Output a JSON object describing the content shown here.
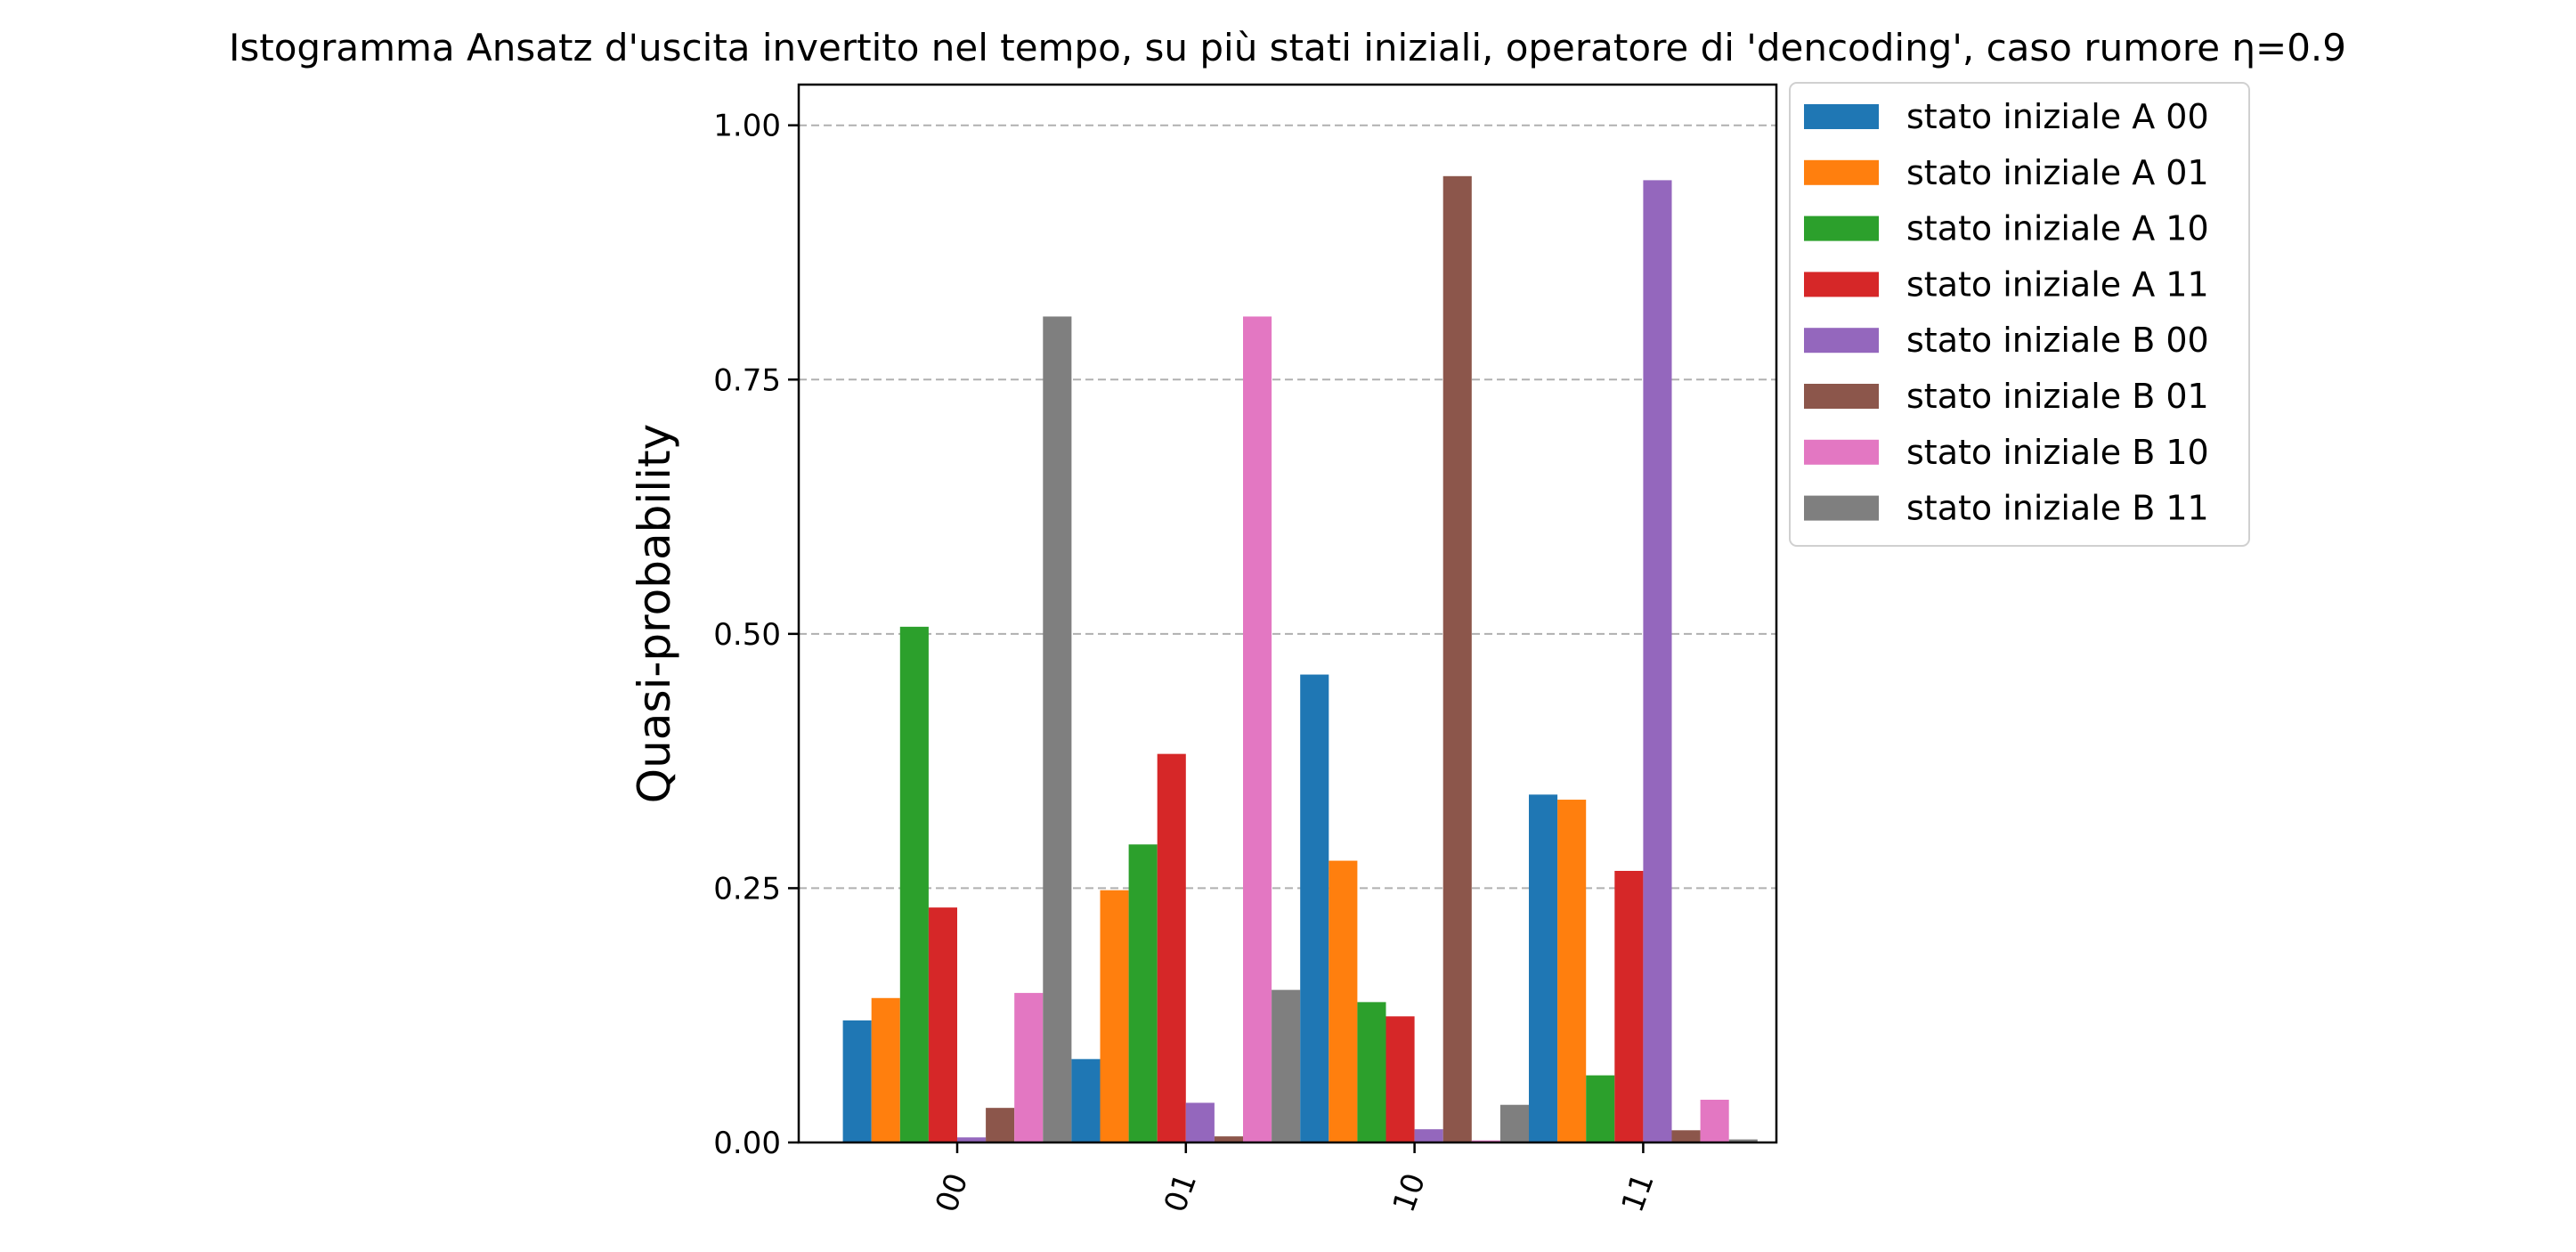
{
  "chart_data": {
    "type": "bar",
    "title": "Istogramma Ansatz d'uscita invertito nel tempo, su più stati iniziali, operatore di 'dencoding', caso rumore η=0.9",
    "xlabel": "",
    "ylabel": "Quasi-probability",
    "categories": [
      "00",
      "01",
      "10",
      "11"
    ],
    "ylim": [
      0,
      1.04
    ],
    "yticks": [
      "0.00",
      "0.25",
      "0.50",
      "0.75",
      "1.00"
    ],
    "ytick_values": [
      0,
      0.25,
      0.5,
      0.75,
      1.0
    ],
    "grid": "y-dashed",
    "legend_position": "outside-top-right",
    "series": [
      {
        "name": "stato iniziale A 00",
        "color": "#1f77b4",
        "values": [
          0.12,
          0.082,
          0.46,
          0.342
        ]
      },
      {
        "name": "stato iniziale A 01",
        "color": "#ff7f0e",
        "values": [
          0.142,
          0.248,
          0.277,
          0.337
        ]
      },
      {
        "name": "stato iniziale A 10",
        "color": "#2ca02c",
        "values": [
          0.507,
          0.293,
          0.138,
          0.066
        ]
      },
      {
        "name": "stato iniziale A 11",
        "color": "#d62728",
        "values": [
          0.231,
          0.382,
          0.124,
          0.267
        ]
      },
      {
        "name": "stato iniziale B 00",
        "color": "#9467bd",
        "values": [
          0.005,
          0.039,
          0.013,
          0.946
        ]
      },
      {
        "name": "stato iniziale B 01",
        "color": "#8c564b",
        "values": [
          0.034,
          0.006,
          0.95,
          0.012
        ]
      },
      {
        "name": "stato iniziale B 10",
        "color": "#e377c2",
        "values": [
          0.147,
          0.812,
          0.002,
          0.042
        ]
      },
      {
        "name": "stato iniziale B 11",
        "color": "#7f7f7f",
        "values": [
          0.812,
          0.15,
          0.037,
          0.003
        ]
      }
    ]
  }
}
